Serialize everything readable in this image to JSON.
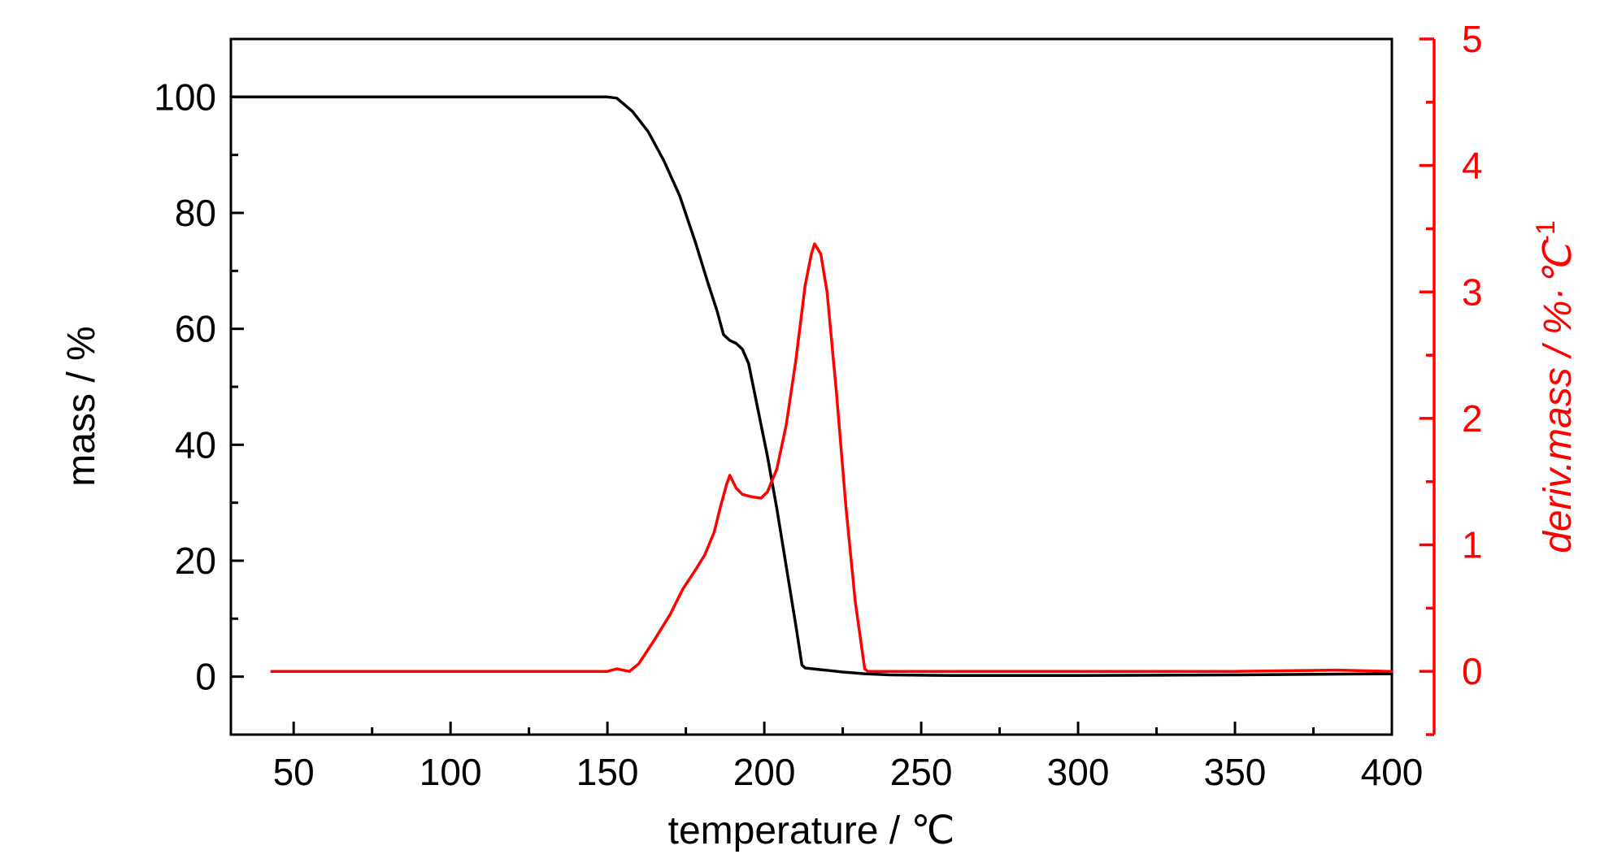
{
  "chart_data": {
    "type": "line",
    "title": "",
    "xlabel": "temperature / ℃",
    "ylabel_left": "mass / %",
    "ylabel_right": "deriv.mass / %·℃",
    "ylabel_right_superscript": "-1",
    "xlim": [
      30,
      400
    ],
    "ylim_left": [
      -10,
      110
    ],
    "ylim_right": [
      -0.5,
      5
    ],
    "x_ticks": [
      "50",
      "100",
      "150",
      "200",
      "250",
      "300",
      "350",
      "400"
    ],
    "y_left_ticks": [
      "0",
      "20",
      "40",
      "60",
      "80",
      "100"
    ],
    "y_right_ticks": [
      "0",
      "1",
      "2",
      "3",
      "4",
      "5"
    ],
    "grid": false,
    "colors": {
      "mass": "#000000",
      "deriv": "#ff0000"
    },
    "series": [
      {
        "axis": "left",
        "points": [
          [
            30,
            100
          ],
          [
            100,
            100
          ],
          [
            150,
            100
          ],
          [
            153,
            99.8
          ],
          [
            158,
            97.5
          ],
          [
            163,
            94
          ],
          [
            168,
            89
          ],
          [
            173,
            83
          ],
          [
            178,
            75
          ],
          [
            182,
            68
          ],
          [
            185,
            63
          ],
          [
            187,
            59
          ],
          [
            189,
            58
          ],
          [
            191,
            57.5
          ],
          [
            193,
            56.5
          ],
          [
            195,
            54
          ],
          [
            198,
            46
          ],
          [
            201,
            38
          ],
          [
            204,
            29
          ],
          [
            207,
            19
          ],
          [
            210,
            9
          ],
          [
            212,
            2
          ],
          [
            213,
            1.5
          ],
          [
            218,
            1.2
          ],
          [
            225,
            0.8
          ],
          [
            232,
            0.5
          ],
          [
            240,
            0.3
          ],
          [
            260,
            0.2
          ],
          [
            300,
            0.2
          ],
          [
            350,
            0.3
          ],
          [
            400,
            0.5
          ]
        ]
      },
      {
        "axis": "right",
        "points": [
          [
            43,
            0
          ],
          [
            100,
            0
          ],
          [
            150,
            0
          ],
          [
            153,
            0.02
          ],
          [
            157,
            0
          ],
          [
            160,
            0.06
          ],
          [
            165,
            0.25
          ],
          [
            170,
            0.45
          ],
          [
            174,
            0.65
          ],
          [
            178,
            0.8
          ],
          [
            181,
            0.92
          ],
          [
            184,
            1.1
          ],
          [
            186,
            1.3
          ],
          [
            188,
            1.48
          ],
          [
            189,
            1.55
          ],
          [
            191,
            1.45
          ],
          [
            193,
            1.4
          ],
          [
            196,
            1.38
          ],
          [
            199,
            1.37
          ],
          [
            201,
            1.42
          ],
          [
            204,
            1.6
          ],
          [
            207,
            1.95
          ],
          [
            210,
            2.45
          ],
          [
            213,
            3.05
          ],
          [
            215,
            3.3
          ],
          [
            216,
            3.38
          ],
          [
            218,
            3.3
          ],
          [
            220,
            3.0
          ],
          [
            223,
            2.2
          ],
          [
            226,
            1.3
          ],
          [
            229,
            0.55
          ],
          [
            232,
            0.02
          ],
          [
            233,
            0
          ],
          [
            250,
            0
          ],
          [
            300,
            0
          ],
          [
            350,
            0
          ],
          [
            383,
            0.01
          ],
          [
            400,
            0
          ]
        ]
      }
    ]
  }
}
